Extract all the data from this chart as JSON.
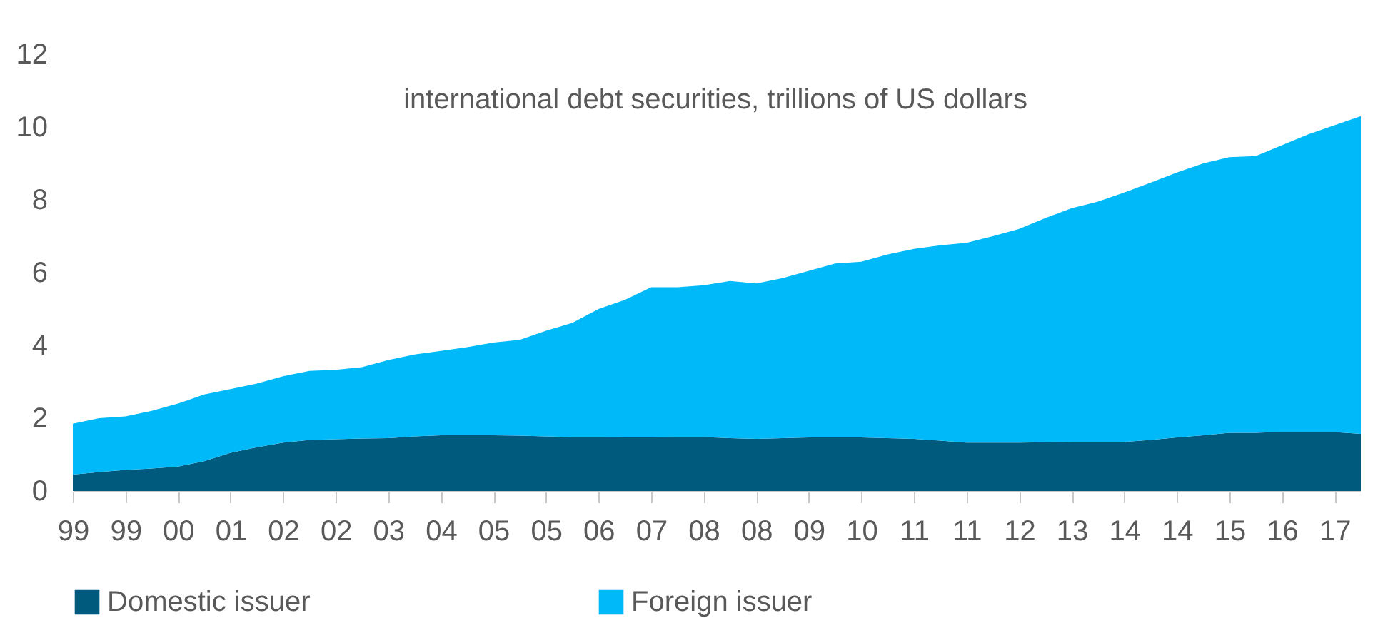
{
  "chart_data": {
    "type": "area",
    "title": "international debt securities, trillions of US dollars",
    "categories": [
      "99",
      null,
      "99",
      null,
      "00",
      null,
      "01",
      null,
      "02",
      null,
      "02",
      null,
      "03",
      null,
      "04",
      null,
      "05",
      null,
      "05",
      null,
      "06",
      null,
      "07",
      null,
      "08",
      null,
      "08",
      null,
      "09",
      null,
      "10",
      null,
      "11",
      null,
      "11",
      null,
      "12",
      null,
      "13",
      null,
      "14",
      null,
      "14",
      null,
      "15",
      null,
      "16",
      null,
      "17",
      null
    ],
    "stacked": true,
    "series": [
      {
        "name": "Domestic issuer",
        "color": "#005a7d",
        "values": [
          0.45,
          0.52,
          0.58,
          0.62,
          0.67,
          0.82,
          1.05,
          1.2,
          1.33,
          1.4,
          1.42,
          1.44,
          1.45,
          1.5,
          1.53,
          1.53,
          1.53,
          1.52,
          1.5,
          1.48,
          1.48,
          1.47,
          1.47,
          1.48,
          1.48,
          1.45,
          1.43,
          1.45,
          1.47,
          1.47,
          1.47,
          1.45,
          1.43,
          1.38,
          1.33,
          1.33,
          1.33,
          1.34,
          1.35,
          1.35,
          1.35,
          1.4,
          1.47,
          1.53,
          1.6,
          1.6,
          1.62,
          1.62,
          1.62,
          1.57
        ]
      },
      {
        "name": "Foreign issuer",
        "color": "#00b9f9",
        "values": [
          1.4,
          1.48,
          1.47,
          1.58,
          1.73,
          1.83,
          1.75,
          1.75,
          1.82,
          1.9,
          1.91,
          1.96,
          2.15,
          2.25,
          2.32,
          2.42,
          2.55,
          2.63,
          2.9,
          3.14,
          3.52,
          3.78,
          4.13,
          4.12,
          4.17,
          4.32,
          4.27,
          4.4,
          4.58,
          4.78,
          4.83,
          5.05,
          5.22,
          5.37,
          5.49,
          5.67,
          5.87,
          6.16,
          6.42,
          6.6,
          6.85,
          7.07,
          7.28,
          7.47,
          7.57,
          7.6,
          7.88,
          8.18,
          8.43,
          8.73
        ]
      }
    ],
    "ylim": [
      0,
      12
    ],
    "yticks": [
      0,
      2,
      4,
      6,
      8,
      10,
      12
    ],
    "grid": false,
    "legend": "bottom"
  }
}
